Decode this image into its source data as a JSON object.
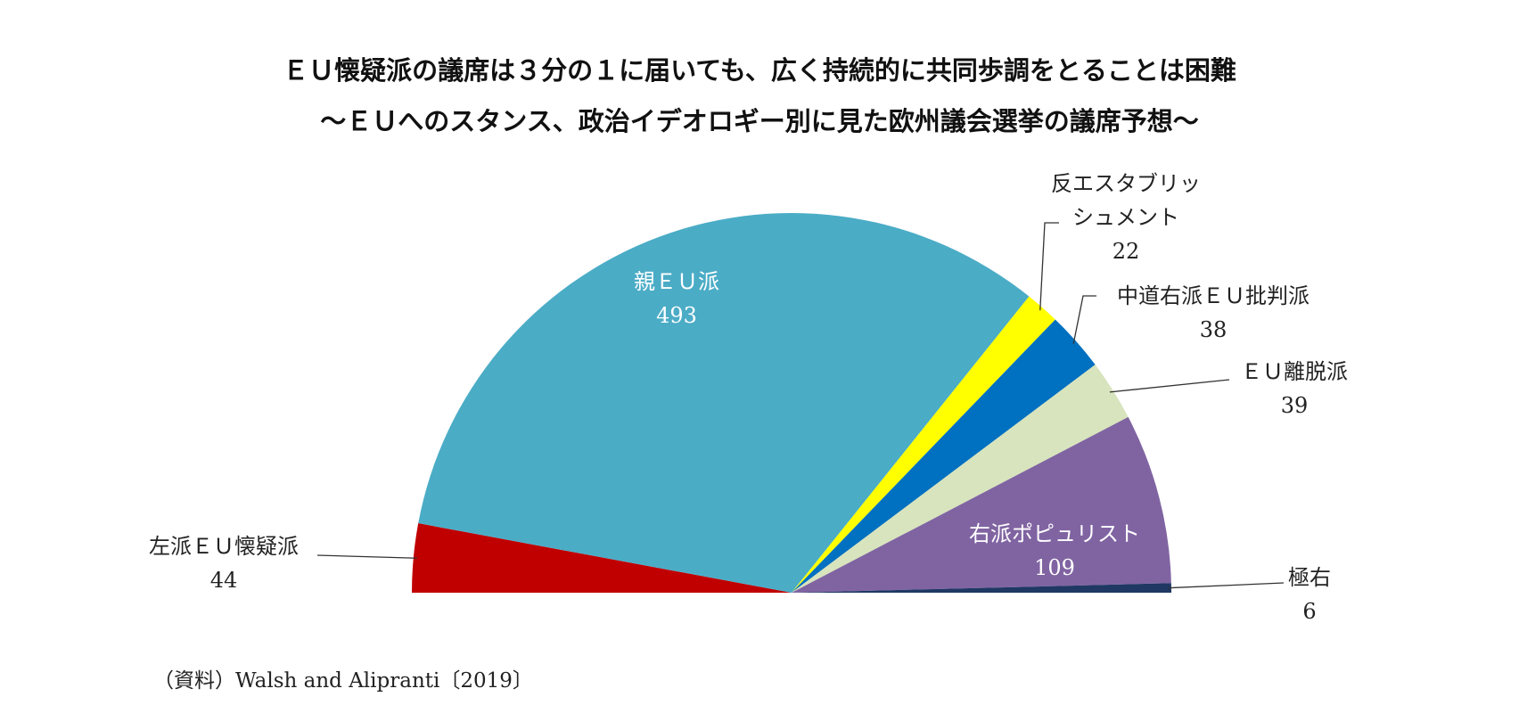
{
  "chart_data": {
    "type": "half-pie",
    "title": "ＥＵ懐疑派の議席は３分の１に届いても、広く持続的に共同歩調をとることは困難",
    "subtitle": "～ＥＵへのスタンス、政治イデオロギー別に見た欧州議会選挙の議席予想～",
    "source": "（資料）Walsh and Alipranti〔2019〕",
    "categories": [
      "左派ＥＵ懐疑派",
      "親ＥＵ派",
      "反エスタブリッシュメント",
      "中道右派ＥＵ批判派",
      "ＥＵ離脱派",
      "右派ポピュリスト",
      "極右"
    ],
    "values": [
      44,
      493,
      22,
      38,
      39,
      109,
      6
    ],
    "colors": [
      "#c00000",
      "#4bacc6",
      "#ffff00",
      "#0070c0",
      "#d7e4bd",
      "#8064a2",
      "#1f3864"
    ]
  }
}
